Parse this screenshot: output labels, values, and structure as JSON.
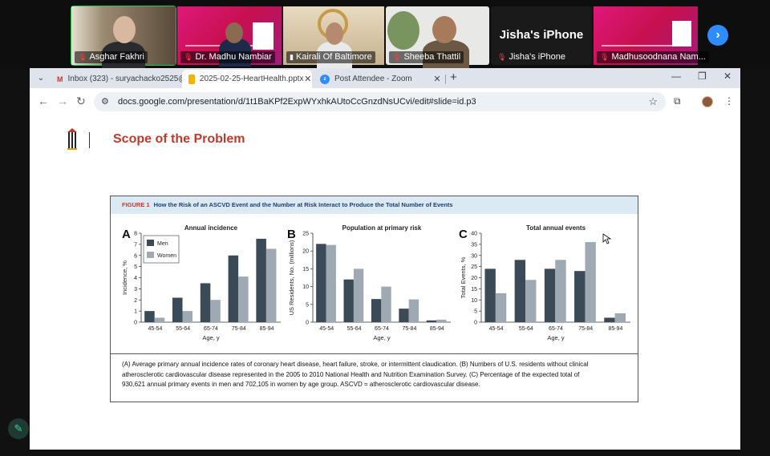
{
  "gallery": {
    "participants": [
      {
        "name": "Asghar Fakhri",
        "muted": false
      },
      {
        "name": "Dr. Madhu Nambiar",
        "muted": true
      },
      {
        "name": "Kairali Of Baltimore",
        "muted": false
      },
      {
        "name": "Sheeba Thattil",
        "muted": true
      },
      {
        "name": "Jisha's iPhone",
        "muted": true,
        "big_label": "Jisha's iPhone"
      },
      {
        "name": "Madhusoodnana Nam...",
        "muted": true
      }
    ],
    "next_icon": "chevron-right-icon"
  },
  "browser": {
    "tabs": [
      {
        "title": "Inbox (323) - suryachacko2525@",
        "favicon": "gmail-icon",
        "active": false
      },
      {
        "title": "2025-02-25-HeartHealth.pptx",
        "favicon": "slides-icon",
        "active": true
      },
      {
        "title": "Post Attendee - Zoom",
        "favicon": "zoom-icon",
        "active": false
      }
    ],
    "url": "docs.google.com/presentation/d/1t1BaKPf2ExpWYxhkAUtoCcGnzdNsUCvi/edit#slide=id.p3"
  },
  "slide": {
    "title": "Scope of the Problem",
    "figure": {
      "label": "FIGURE 1",
      "heading": "How the Risk of an ASCVD Event and the Number at Risk Interact to Produce the Total Number of Events",
      "caption_lines": [
        "(A) Average primary annual incidence rates of coronary heart disease, heart failure, stroke, or intermittent claudication. (B) Numbers of U.S. residents without clinical",
        "atherosclerotic cardiovascular disease represented in the 2005 to 2010 National Health and Nutrition Examination Survey. (C) Percentage of the expected total of",
        "930,621 annual primary events in men and 702,105 in women by age group. ASCVD = atherosclerotic cardiovascular disease."
      ]
    }
  },
  "colors": {
    "men": "#3b4a57",
    "women": "#9ea9b3",
    "title_red": "#c0392b"
  },
  "chart_data": [
    {
      "panel": "A",
      "type": "bar",
      "title": "Annual incidence",
      "xlabel": "Age, y",
      "ylabel": "Incidence, %",
      "ylim": [
        0,
        8
      ],
      "yticks": [
        0,
        1,
        2,
        3,
        4,
        5,
        6,
        7,
        8
      ],
      "categories": [
        "45-54",
        "55-64",
        "65-74",
        "75-84",
        "85-94"
      ],
      "series": [
        {
          "name": "Men",
          "values": [
            1.0,
            2.2,
            3.5,
            6.0,
            7.5
          ]
        },
        {
          "name": "Women",
          "values": [
            0.4,
            1.0,
            2.0,
            4.1,
            6.6
          ]
        }
      ],
      "legend": "top-left"
    },
    {
      "panel": "B",
      "type": "bar",
      "title": "Population at primary risk",
      "xlabel": "Age, y",
      "ylabel": "US Residents, No. (millions)",
      "ylim": [
        0,
        25
      ],
      "yticks": [
        0,
        5,
        10,
        15,
        20,
        25
      ],
      "categories": [
        "45-54",
        "55-64",
        "65-74",
        "75-84",
        "85-94"
      ],
      "series": [
        {
          "name": "Men",
          "values": [
            22.0,
            12.0,
            6.5,
            3.8,
            0.5
          ]
        },
        {
          "name": "Women",
          "values": [
            21.7,
            15.0,
            10.0,
            6.4,
            0.7
          ]
        }
      ]
    },
    {
      "panel": "C",
      "type": "bar",
      "title": "Total annual events",
      "xlabel": "Age, y",
      "ylabel": "Total Events, %",
      "ylim": [
        0,
        40
      ],
      "yticks": [
        0,
        5,
        10,
        15,
        20,
        25,
        30,
        35,
        40
      ],
      "categories": [
        "45-54",
        "55-64",
        "65-74",
        "75-84",
        "85-94"
      ],
      "series": [
        {
          "name": "Men",
          "values": [
            24.0,
            28.0,
            24.0,
            23.0,
            2.0
          ]
        },
        {
          "name": "Women",
          "values": [
            13.0,
            19.0,
            28.0,
            36.0,
            4.0
          ]
        }
      ]
    }
  ]
}
